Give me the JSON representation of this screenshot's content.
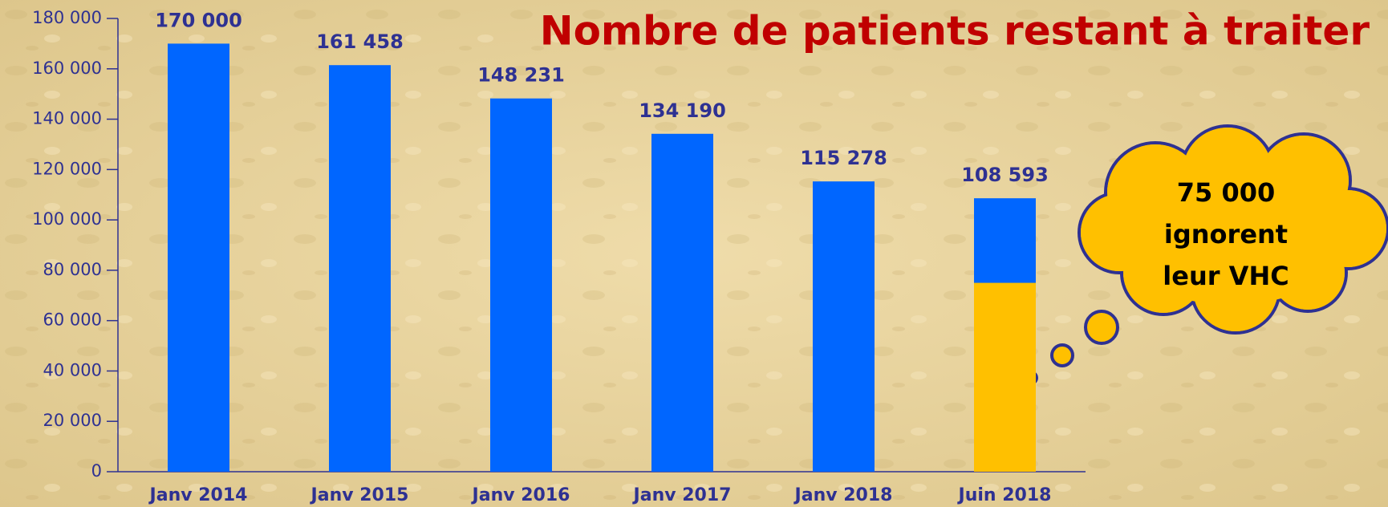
{
  "chart_data": {
    "type": "bar",
    "title": "Nombre de patients restant à traiter",
    "categories": [
      "Janv 2014",
      "Janv 2015",
      "Janv 2016",
      "Janv 2017",
      "Janv 2018",
      "Juin 2018"
    ],
    "series": [
      {
        "color": "#0066ff",
        "values": [
          170000,
          161458,
          148231,
          134190,
          115278,
          108593
        ],
        "value_labels": [
          "170 000",
          "161 458",
          "148 231",
          "134 190",
          "115 278",
          "108 593"
        ]
      },
      {
        "color": "#ffc000",
        "values": [
          null,
          null,
          null,
          null,
          null,
          75000
        ]
      }
    ],
    "annotation": [
      "75 000",
      "ignorent",
      "leur VHC"
    ],
    "ylim": [
      0,
      180000
    ],
    "yticks": [
      0,
      {
        "value": 20000,
        "label": "20 000"
      },
      {
        "value": 40000,
        "label": "40 000"
      },
      {
        "value": 60000,
        "label": "60 000"
      },
      {
        "value": 80000,
        "label": "80 000"
      },
      {
        "value": 100000,
        "label": "100 000"
      },
      {
        "value": 120000,
        "label": "120 000"
      },
      {
        "value": 140000,
        "label": "140 000"
      },
      {
        "value": 160000,
        "label": "160 000"
      },
      {
        "value": 180000,
        "label": "180 000"
      }
    ],
    "grid": false
  }
}
